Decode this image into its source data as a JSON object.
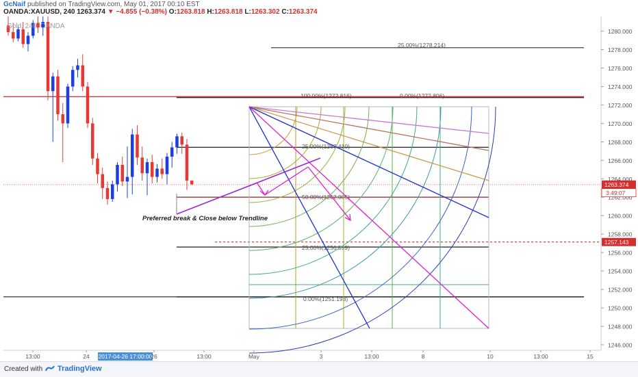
{
  "header": {
    "author": "GcNaif",
    "published_text": "published on TradingView.com, May 01, 2017 00:10 EST",
    "symbol": "OANDA:XAUUSD, 240",
    "last": "1263.374",
    "change": "▼ −4.855 (−0.38%)",
    "open_label": "O:",
    "open": "1263.818",
    "high_label": "H:",
    "high": "1263.818",
    "low_label": "L:",
    "low": "1263.302",
    "close_label": "C:",
    "close": "1263.374"
  },
  "watermark": "Gold, 240, OANDA",
  "footer": {
    "created_with": "Created with",
    "brand": "TradingView"
  },
  "colors": {
    "up": "#1e3fe0",
    "down": "#e53935",
    "purple": "#9c27d0",
    "magenta": "#e020c8",
    "blue": "#1a2fd0",
    "price_red": "#d32f2f"
  },
  "chart_data": {
    "type": "candlestick",
    "y_axis": {
      "ylim": [
        1245.4,
        1281.6
      ],
      "ticks": [
        "1280.000",
        "1278.000",
        "1276.000",
        "1274.000",
        "1272.000",
        "1270.000",
        "1268.000",
        "1266.000",
        "1264.000",
        "1262.000",
        "1260.000",
        "1258.000",
        "1256.000",
        "1254.000",
        "1252.000",
        "1250.000",
        "1248.000",
        "1246.000"
      ]
    },
    "x_axis": {
      "ticks": [
        "13:00",
        "24",
        "2017-04-26 17:00:00",
        "26",
        "13:00",
        "May",
        "3",
        "13:00",
        "8",
        "10",
        "13:00",
        "15"
      ],
      "highlighted_tick": "2017-04-26 17:00:00"
    },
    "current_price_label": "1263.374",
    "countdown_label": "3:49:07",
    "target_price_label": "1257.143",
    "candles": [
      {
        "o": 1280.6,
        "h": 1281.6,
        "l": 1279.5,
        "c": 1279.9
      },
      {
        "o": 1279.9,
        "h": 1280.9,
        "l": 1278.8,
        "c": 1279.2
      },
      {
        "o": 1279.2,
        "h": 1280.6,
        "l": 1278.9,
        "c": 1280.2
      },
      {
        "o": 1280.2,
        "h": 1281.0,
        "l": 1278.2,
        "c": 1278.6
      },
      {
        "o": 1278.6,
        "h": 1279.9,
        "l": 1277.8,
        "c": 1279.5
      },
      {
        "o": 1279.5,
        "h": 1281.2,
        "l": 1279.2,
        "c": 1280.9
      },
      {
        "o": 1280.9,
        "h": 1281.6,
        "l": 1279.8,
        "c": 1280.4
      },
      {
        "o": 1280.4,
        "h": 1281.6,
        "l": 1279.5,
        "c": 1281.0
      },
      {
        "o": 1281.0,
        "h": 1281.6,
        "l": 1272.5,
        "c": 1273.5
      },
      {
        "o": 1273.5,
        "h": 1275.5,
        "l": 1268.0,
        "c": 1275.1
      },
      {
        "o": 1275.1,
        "h": 1275.8,
        "l": 1270.3,
        "c": 1271.0
      },
      {
        "o": 1271.0,
        "h": 1272.2,
        "l": 1265.8,
        "c": 1270.0
      },
      {
        "o": 1270.0,
        "h": 1274.3,
        "l": 1269.5,
        "c": 1274.0
      },
      {
        "o": 1274.0,
        "h": 1276.2,
        "l": 1273.5,
        "c": 1275.8
      },
      {
        "o": 1275.8,
        "h": 1277.0,
        "l": 1275.0,
        "c": 1276.3
      },
      {
        "o": 1276.3,
        "h": 1277.5,
        "l": 1273.5,
        "c": 1274.0
      },
      {
        "o": 1274.0,
        "h": 1274.5,
        "l": 1269.5,
        "c": 1270.0
      },
      {
        "o": 1270.0,
        "h": 1270.6,
        "l": 1265.5,
        "c": 1266.2
      },
      {
        "o": 1266.2,
        "h": 1266.8,
        "l": 1263.5,
        "c": 1264.5
      },
      {
        "o": 1264.5,
        "h": 1265.2,
        "l": 1261.8,
        "c": 1263.0
      },
      {
        "o": 1263.0,
        "h": 1263.7,
        "l": 1261.2,
        "c": 1261.8
      },
      {
        "o": 1261.8,
        "h": 1263.8,
        "l": 1261.5,
        "c": 1263.4
      },
      {
        "o": 1263.4,
        "h": 1265.8,
        "l": 1262.6,
        "c": 1265.5
      },
      {
        "o": 1265.5,
        "h": 1266.4,
        "l": 1263.2,
        "c": 1263.7
      },
      {
        "o": 1263.7,
        "h": 1267.5,
        "l": 1261.9,
        "c": 1264.2
      },
      {
        "o": 1264.2,
        "h": 1269.4,
        "l": 1262.3,
        "c": 1268.8
      },
      {
        "o": 1268.8,
        "h": 1269.8,
        "l": 1265.5,
        "c": 1266.3
      },
      {
        "o": 1266.3,
        "h": 1267.5,
        "l": 1263.8,
        "c": 1264.6
      },
      {
        "o": 1264.6,
        "h": 1266.2,
        "l": 1262.2,
        "c": 1265.8
      },
      {
        "o": 1265.8,
        "h": 1266.6,
        "l": 1263.5,
        "c": 1264.2
      },
      {
        "o": 1264.2,
        "h": 1265.6,
        "l": 1263.6,
        "c": 1265.1
      },
      {
        "o": 1265.1,
        "h": 1266.2,
        "l": 1264.0,
        "c": 1264.5
      },
      {
        "o": 1264.5,
        "h": 1266.8,
        "l": 1263.4,
        "c": 1266.4
      },
      {
        "o": 1266.4,
        "h": 1268.0,
        "l": 1265.2,
        "c": 1267.4
      },
      {
        "o": 1267.4,
        "h": 1268.9,
        "l": 1266.7,
        "c": 1268.6
      },
      {
        "o": 1268.6,
        "h": 1269.0,
        "l": 1266.7,
        "c": 1267.7
      },
      {
        "o": 1267.7,
        "h": 1268.3,
        "l": 1262.8,
        "c": 1263.8
      },
      {
        "o": 1263.8,
        "h": 1263.8,
        "l": 1263.3,
        "c": 1263.4
      }
    ],
    "horizontal_lines": [
      {
        "price": 1278.214,
        "label": "25.00%(1278.214)",
        "color": "#555555"
      },
      {
        "price": 1272.816,
        "label": "100.00%(1272.816)",
        "color": "#333333"
      },
      {
        "price": 1272.806,
        "label": "0.00%(1272.806)",
        "color": "#333333"
      },
      {
        "price": 1267.41,
        "label": "25.00%(1267.410)",
        "color": "#333333"
      },
      {
        "price": 1262.005,
        "label": "50.00%(1262.005)",
        "color": "#a33333"
      },
      {
        "price": 1256.599,
        "label": "25.00%(1256.599)",
        "color": "#333333"
      },
      {
        "price": 1251.193,
        "label": "0.00%(1251.193)",
        "color": "#333333"
      },
      {
        "price": 1272.9,
        "label": "",
        "color": "#c62828"
      },
      {
        "price": 1251.2,
        "label": "",
        "color": "#222222"
      }
    ],
    "annotation": "Preferred break & Close below Trendline"
  }
}
